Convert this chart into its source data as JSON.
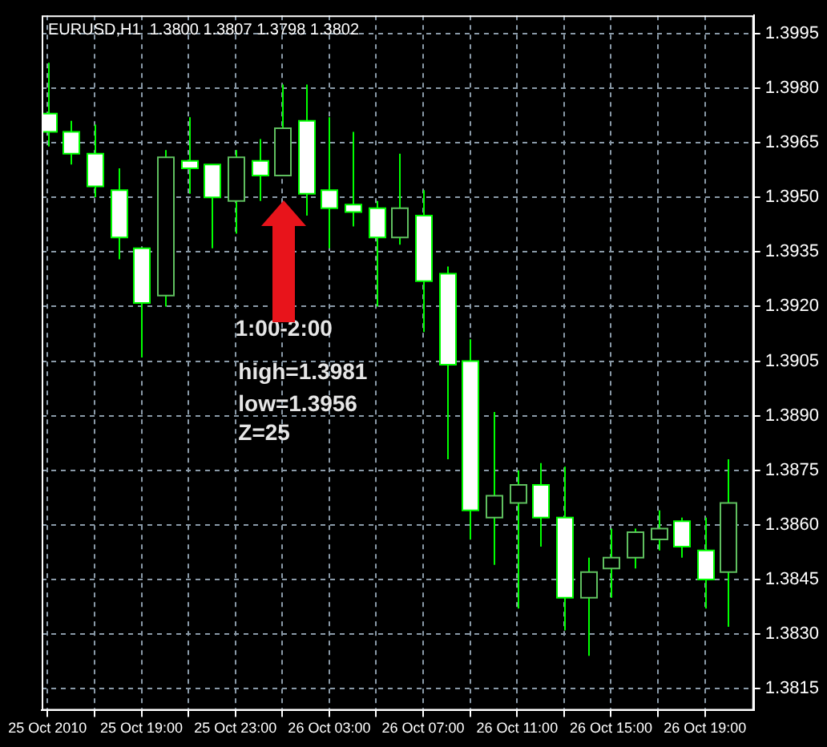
{
  "chart_data": {
    "type": "candlestick",
    "title": "EURUSD,H1  1.3800 1.3807 1.3798 1.3802",
    "x": [
      "2010-10-25T15:00",
      "2010-10-25T16:00",
      "2010-10-25T17:00",
      "2010-10-25T18:00",
      "2010-10-25T19:00",
      "2010-10-25T20:00",
      "2010-10-25T21:00",
      "2010-10-25T22:00",
      "2010-10-25T23:00",
      "2010-10-26T00:00",
      "2010-10-26T01:00",
      "2010-10-26T02:00",
      "2010-10-26T03:00",
      "2010-10-26T04:00",
      "2010-10-26T05:00",
      "2010-10-26T06:00",
      "2010-10-26T07:00",
      "2010-10-26T08:00",
      "2010-10-26T09:00",
      "2010-10-26T10:00",
      "2010-10-26T11:00",
      "2010-10-26T12:00",
      "2010-10-26T13:00",
      "2010-10-26T14:00",
      "2010-10-26T15:00",
      "2010-10-26T16:00",
      "2010-10-26T17:00",
      "2010-10-26T18:00",
      "2010-10-26T19:00",
      "2010-10-26T20:00"
    ],
    "ohlc": [
      [
        1.3973,
        1.3987,
        1.3964,
        1.3968
      ],
      [
        1.3968,
        1.3971,
        1.3959,
        1.3962
      ],
      [
        1.3962,
        1.397,
        1.395,
        1.3953
      ],
      [
        1.3952,
        1.3958,
        1.3933,
        1.3939
      ],
      [
        1.3936,
        1.3936,
        1.3906,
        1.3921
      ],
      [
        1.3923,
        1.3963,
        1.392,
        1.3961
      ],
      [
        1.396,
        1.3972,
        1.3951,
        1.3958
      ],
      [
        1.3959,
        1.3959,
        1.3936,
        1.395
      ],
      [
        1.3949,
        1.3963,
        1.394,
        1.3961
      ],
      [
        1.396,
        1.3966,
        1.3949,
        1.3956
      ],
      [
        1.3956,
        1.3981,
        1.3956,
        1.3969
      ],
      [
        1.3971,
        1.3981,
        1.3945,
        1.3951
      ],
      [
        1.3952,
        1.3972,
        1.3936,
        1.3947
      ],
      [
        1.3948,
        1.3968,
        1.3942,
        1.3946
      ],
      [
        1.3947,
        1.3949,
        1.392,
        1.3939
      ],
      [
        1.3939,
        1.3962,
        1.3937,
        1.3947
      ],
      [
        1.3945,
        1.3952,
        1.3913,
        1.3927
      ],
      [
        1.3929,
        1.3931,
        1.3878,
        1.3904
      ],
      [
        1.3905,
        1.3911,
        1.3856,
        1.3864
      ],
      [
        1.3862,
        1.3891,
        1.3849,
        1.3868
      ],
      [
        1.3866,
        1.3875,
        1.3837,
        1.3871
      ],
      [
        1.3871,
        1.3877,
        1.3854,
        1.3862
      ],
      [
        1.3862,
        1.3876,
        1.3831,
        1.384
      ],
      [
        1.384,
        1.3851,
        1.3824,
        1.3847
      ],
      [
        1.3848,
        1.3859,
        1.384,
        1.3851
      ],
      [
        1.3851,
        1.3859,
        1.3848,
        1.3858
      ],
      [
        1.3856,
        1.3864,
        1.3853,
        1.3859
      ],
      [
        1.3861,
        1.3862,
        1.3851,
        1.3854
      ],
      [
        1.3853,
        1.3862,
        1.3837,
        1.3845
      ],
      [
        1.3847,
        1.3878,
        1.3832,
        1.3866
      ]
    ],
    "xlim": [
      "2010-10-25T14:45",
      "2010-10-26T21:05"
    ],
    "xticks": [
      {
        "value": "2010-10-25T15:00",
        "label": "25 Oct 2010"
      },
      {
        "value": "2010-10-25T17:00",
        "label": null
      },
      {
        "value": "2010-10-25T19:00",
        "label": "25 Oct 19:00"
      },
      {
        "value": "2010-10-25T21:00",
        "label": null
      },
      {
        "value": "2010-10-25T23:00",
        "label": "25 Oct 23:00"
      },
      {
        "value": "2010-10-26T01:00",
        "label": null
      },
      {
        "value": "2010-10-26T03:00",
        "label": "26 Oct 03:00"
      },
      {
        "value": "2010-10-26T05:00",
        "label": null
      },
      {
        "value": "2010-10-26T07:00",
        "label": "26 Oct 07:00"
      },
      {
        "value": "2010-10-26T09:00",
        "label": null
      },
      {
        "value": "2010-10-26T11:00",
        "label": "26 Oct 11:00"
      },
      {
        "value": "2010-10-26T13:00",
        "label": null
      },
      {
        "value": "2010-10-26T15:00",
        "label": "26 Oct 15:00"
      },
      {
        "value": "2010-10-26T17:00",
        "label": null
      },
      {
        "value": "2010-10-26T19:00",
        "label": "26 Oct 19:00"
      }
    ],
    "ylim": [
      1.3809,
      1.4
    ],
    "yticks": [
      1.3815,
      {
        "value": 1.383,
        "label": "1.3830"
      },
      1.3845,
      {
        "value": 1.386,
        "label": "1.3860"
      },
      1.3875,
      {
        "value": 1.389,
        "label": "1.3890"
      },
      1.3905,
      {
        "value": 1.392,
        "label": "1.3920"
      },
      1.3935,
      {
        "value": 1.395,
        "label": "1.3950"
      },
      1.3965,
      {
        "value": 1.398,
        "label": "1.3980"
      },
      1.3995
    ],
    "grid": true,
    "annotations": [
      "1:00-2:00",
      "high=1.3981",
      "low=1.3956",
      "Z=25"
    ]
  }
}
